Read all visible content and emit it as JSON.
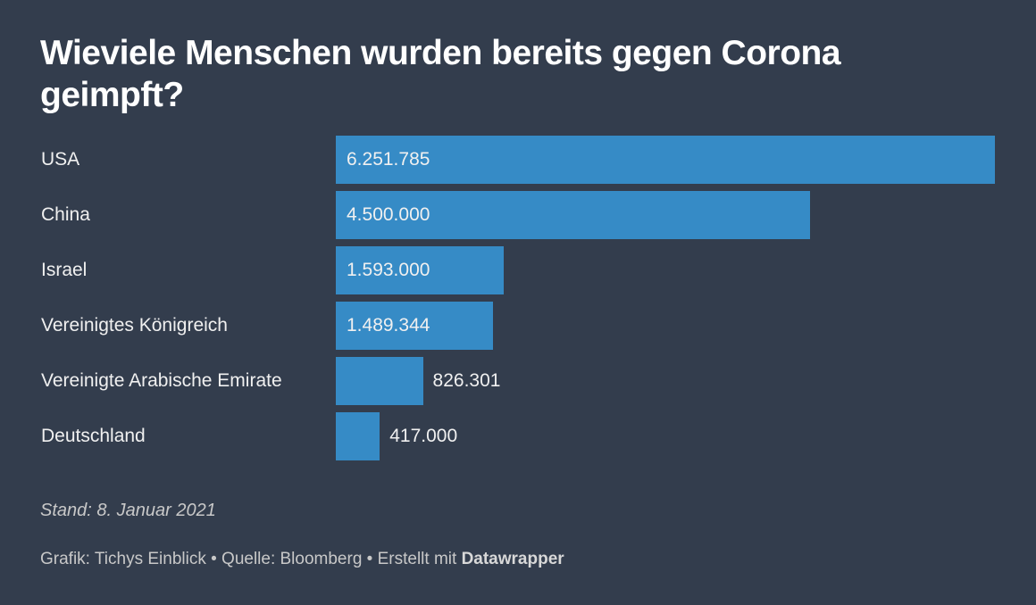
{
  "chart_data": {
    "type": "bar",
    "orientation": "horizontal",
    "title": "Wieviele Menschen wurden bereits gegen Corona geimpft?",
    "categories": [
      "USA",
      "China",
      "Israel",
      "Vereinigtes Königreich",
      "Vereinigte Arabische Emirate",
      "Deutschland"
    ],
    "values": [
      6251785,
      4500000,
      1593000,
      1489344,
      826301,
      417000
    ],
    "value_labels": [
      "6.251.785",
      "4.500.000",
      "1.593.000",
      "1.489.344",
      "826.301",
      "417.000"
    ],
    "xlabel": "",
    "ylabel": "",
    "xlim": [
      0,
      6251785
    ],
    "grid": false,
    "bar_color": "#368bc6"
  },
  "notes": "Stand: 8. Januar 2021",
  "footer": {
    "prefix": "Grafik: Tichys Einblick • Quelle: Bloomberg • Erstellt mit",
    "brand": "Datawrapper"
  }
}
